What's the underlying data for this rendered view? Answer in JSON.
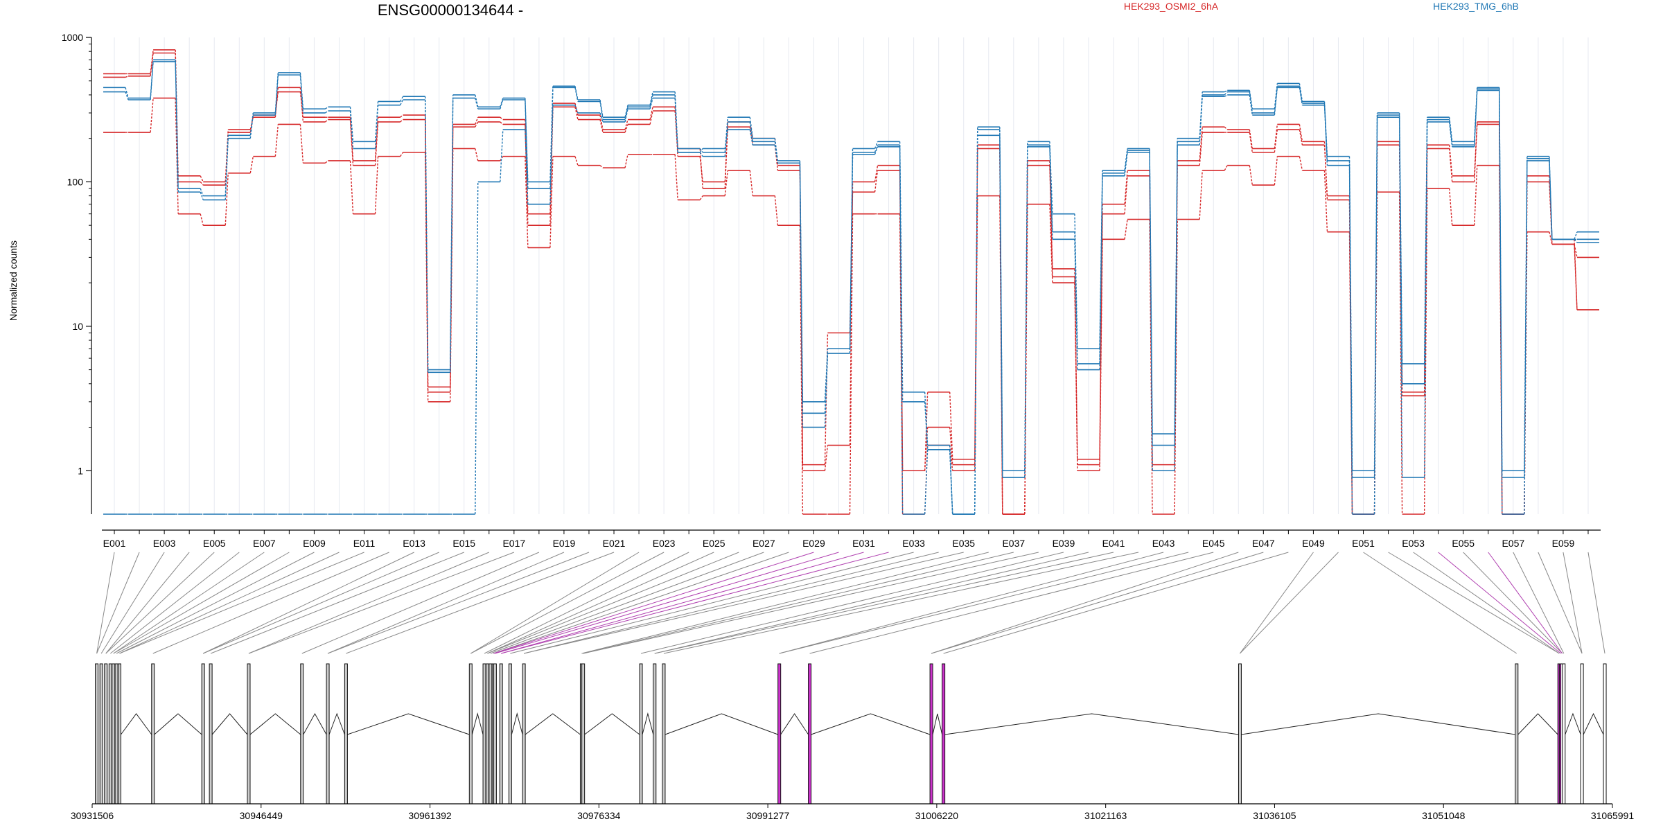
{
  "chart_data": {
    "type": "line",
    "title": "ENSG00000134644 -",
    "ylabel": "Normalized counts",
    "yscale": "log",
    "ylim": [
      0.5,
      1000
    ],
    "yticks": [
      "1",
      "10",
      "100",
      "1000"
    ],
    "legend": [
      {
        "label": "HEK293_OSMI2_6hA",
        "color": "#d62728"
      },
      {
        "label": "HEK293_TMG_6hB",
        "color": "#1f77b4"
      }
    ],
    "exon_labels_shown": [
      "E001",
      "E003",
      "E005",
      "E007",
      "E009",
      "E011",
      "E013",
      "E015",
      "E017",
      "E019",
      "E021",
      "E023",
      "E025",
      "E027",
      "E029",
      "E031",
      "E033",
      "E035",
      "E037",
      "E039",
      "E041",
      "E043",
      "E045",
      "E047",
      "E049",
      "E051",
      "E053",
      "E055",
      "E057",
      "E059"
    ],
    "exon_count": 60,
    "series": [
      {
        "name": "HEK293_OSMI2_6hA",
        "color": "#d62728",
        "values": [
          530,
          540,
          780,
          110,
          100,
          230,
          280,
          450,
          260,
          270,
          130,
          260,
          270,
          3.8,
          240,
          260,
          250,
          50,
          330,
          270,
          220,
          250,
          310,
          170,
          90,
          240,
          180,
          120,
          1.1,
          9,
          85,
          120,
          1,
          3.5,
          1.2,
          170,
          0.5,
          130,
          25,
          1.1,
          60,
          110,
          1.1,
          130,
          220,
          220,
          160,
          230,
          180,
          80,
          0.5,
          180,
          3.5,
          170,
          100,
          250,
          0.5,
          110,
          40,
          13
        ]
      },
      {
        "name": "HEK293_OSMI2_6hA",
        "color": "#d62728",
        "values": [
          560,
          560,
          820,
          100,
          95,
          220,
          290,
          420,
          280,
          280,
          140,
          280,
          290,
          3.5,
          250,
          280,
          270,
          60,
          350,
          290,
          230,
          270,
          330,
          150,
          100,
          260,
          200,
          130,
          1.0,
          1.5,
          100,
          130,
          1.0,
          2.0,
          1.1,
          180,
          0.5,
          140,
          22,
          1.2,
          70,
          120,
          1.0,
          140,
          240,
          230,
          170,
          250,
          190,
          75,
          0.5,
          190,
          3.3,
          180,
          110,
          260,
          0.5,
          100,
          37,
          30
        ]
      },
      {
        "name": "HEK293_OSMI2_6hA",
        "color": "#d62728",
        "values": [
          220,
          220,
          380,
          60,
          50,
          115,
          150,
          250,
          135,
          140,
          60,
          150,
          160,
          3.0,
          170,
          140,
          150,
          35,
          150,
          130,
          125,
          155,
          155,
          75,
          80,
          120,
          80,
          50,
          0.5,
          0.5,
          60,
          60,
          0.5,
          1.5,
          1.0,
          80,
          0.5,
          70,
          20,
          1.0,
          40,
          55,
          0.5,
          55,
          120,
          130,
          95,
          150,
          120,
          45,
          0.5,
          85,
          0.5,
          90,
          50,
          130,
          0.5,
          45,
          37,
          13
        ]
      },
      {
        "name": "HEK293_TMG_6hB",
        "color": "#1f77b4",
        "values": [
          450,
          380,
          700,
          90,
          80,
          210,
          300,
          570,
          320,
          330,
          190,
          360,
          390,
          5.0,
          400,
          330,
          380,
          100,
          460,
          370,
          280,
          340,
          420,
          170,
          160,
          280,
          200,
          140,
          3.0,
          7,
          170,
          190,
          3.5,
          1.5,
          0.5,
          240,
          1.0,
          190,
          60,
          7,
          120,
          170,
          1.8,
          200,
          420,
          430,
          320,
          480,
          360,
          150,
          1.0,
          300,
          5.5,
          280,
          190,
          450,
          1.0,
          150,
          40,
          45
        ]
      },
      {
        "name": "HEK293_TMG_6hB",
        "color": "#1f77b4",
        "values": [
          420,
          370,
          680,
          85,
          75,
          200,
          290,
          550,
          300,
          310,
          170,
          340,
          370,
          4.8,
          380,
          320,
          370,
          90,
          450,
          360,
          270,
          330,
          400,
          160,
          150,
          260,
          190,
          135,
          2.5,
          6.5,
          160,
          180,
          3.0,
          1.4,
          0.5,
          230,
          0.9,
          180,
          45,
          5.5,
          115,
          165,
          1.5,
          190,
          400,
          420,
          300,
          460,
          350,
          140,
          0.9,
          290,
          4.0,
          270,
          180,
          440,
          0.9,
          145,
          40,
          40
        ]
      },
      {
        "name": "HEK293_TMG_6hB",
        "color": "#1f77b4",
        "values": [
          0.5,
          0.5,
          0.5,
          0.5,
          0.5,
          0.5,
          0.5,
          0.5,
          0.5,
          0.5,
          0.5,
          0.5,
          0.5,
          0.5,
          0.5,
          100,
          230,
          70,
          340,
          300,
          260,
          320,
          380,
          160,
          170,
          230,
          180,
          135,
          2.0,
          6.5,
          155,
          175,
          0.5,
          1.4,
          0.5,
          210,
          0.9,
          175,
          40,
          5.0,
          110,
          160,
          1.0,
          180,
          390,
          400,
          290,
          450,
          340,
          130,
          0.5,
          280,
          0.9,
          260,
          175,
          430,
          0.5,
          140,
          40,
          38
        ]
      }
    ],
    "genomic_axis": {
      "ticks": [
        "30931506",
        "30946449",
        "30961392",
        "30976334",
        "30991277",
        "31006220",
        "31021163",
        "31036105",
        "31051048",
        "31065991"
      ],
      "range": [
        30931506,
        31065991
      ]
    }
  }
}
